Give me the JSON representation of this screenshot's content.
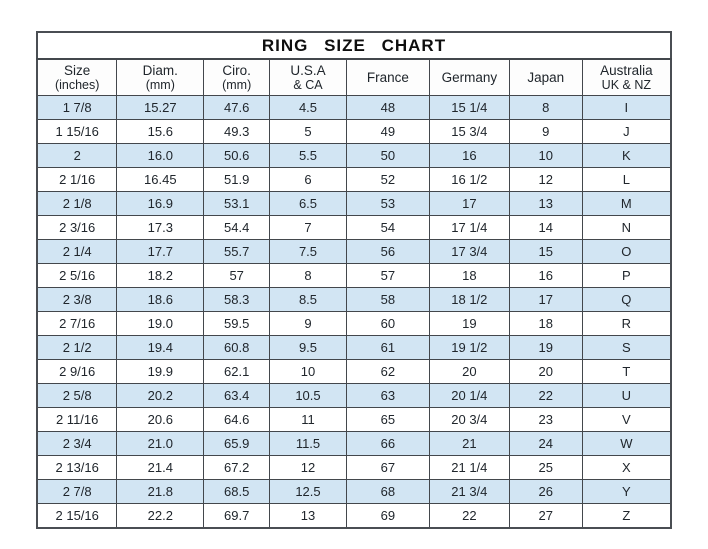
{
  "chart_data": {
    "type": "table",
    "title": "RING  SIZE  CHART",
    "columns": [
      "Size (inches)",
      "Diam. (mm)",
      "Ciro. (mm)",
      "U.S.A & CA",
      "France",
      "Germany",
      "Japan",
      "Australia UK & NZ"
    ],
    "column_headers": [
      {
        "line1": "Size",
        "line2": "(inches)"
      },
      {
        "line1": "Diam.",
        "line2": "(mm)"
      },
      {
        "line1": "Ciro.",
        "line2": "(mm)"
      },
      {
        "line1": "U.S.A",
        "line2": "& CA"
      },
      {
        "line1": "France",
        "line2": ""
      },
      {
        "line1": "Germany",
        "line2": ""
      },
      {
        "line1": "Japan",
        "line2": ""
      },
      {
        "line1": "Australia",
        "line2": "UK & NZ"
      }
    ],
    "rows": [
      [
        "1 7/8",
        "15.27",
        "47.6",
        "4.5",
        "48",
        "15 1/4",
        "8",
        "I"
      ],
      [
        "1 15/16",
        "15.6",
        "49.3",
        "5",
        "49",
        "15 3/4",
        "9",
        "J"
      ],
      [
        "2",
        "16.0",
        "50.6",
        "5.5",
        "50",
        "16",
        "10",
        "K"
      ],
      [
        "2 1/16",
        "16.45",
        "51.9",
        "6",
        "52",
        "16 1/2",
        "12",
        "L"
      ],
      [
        "2 1/8",
        "16.9",
        "53.1",
        "6.5",
        "53",
        "17",
        "13",
        "M"
      ],
      [
        "2 3/16",
        "17.3",
        "54.4",
        "7",
        "54",
        "17 1/4",
        "14",
        "N"
      ],
      [
        "2 1/4",
        "17.7",
        "55.7",
        "7.5",
        "56",
        "17 3/4",
        "15",
        "O"
      ],
      [
        "2 5/16",
        "18.2",
        "57",
        "8",
        "57",
        "18",
        "16",
        "P"
      ],
      [
        "2 3/8",
        "18.6",
        "58.3",
        "8.5",
        "58",
        "18 1/2",
        "17",
        "Q"
      ],
      [
        "2 7/16",
        "19.0",
        "59.5",
        "9",
        "60",
        "19",
        "18",
        "R"
      ],
      [
        "2 1/2",
        "19.4",
        "60.8",
        "9.5",
        "61",
        "19 1/2",
        "19",
        "S"
      ],
      [
        "2 9/16",
        "19.9",
        "62.1",
        "10",
        "62",
        "20",
        "20",
        "T"
      ],
      [
        "2 5/8",
        "20.2",
        "63.4",
        "10.5",
        "63",
        "20 1/4",
        "22",
        "U"
      ],
      [
        "2 11/16",
        "20.6",
        "64.6",
        "11",
        "65",
        "20 3/4",
        "23",
        "V"
      ],
      [
        "2 3/4",
        "21.0",
        "65.9",
        "11.5",
        "66",
        "21",
        "24",
        "W"
      ],
      [
        "2 13/16",
        "21.4",
        "67.2",
        "12",
        "67",
        "21 1/4",
        "25",
        "X"
      ],
      [
        "2 7/8",
        "21.8",
        "68.5",
        "12.5",
        "68",
        "21 3/4",
        "26",
        "Y"
      ],
      [
        "2 15/16",
        "22.2",
        "69.7",
        "13",
        "69",
        "22",
        "27",
        "Z"
      ]
    ],
    "layout": {
      "striped": true,
      "first_data_row_shaded": true,
      "grid": true,
      "column_width_percents": [
        12.6,
        13.7,
        10.4,
        12.1,
        13.1,
        12.6,
        11.5,
        14.0
      ]
    }
  },
  "colors": {
    "row_alt_blue": "#d2e5f3",
    "row_white": "#ffffff",
    "grid_border": "#43474c",
    "text": "#20262c",
    "title_text": "#0e0e0e",
    "page_background": "#ffffff"
  }
}
